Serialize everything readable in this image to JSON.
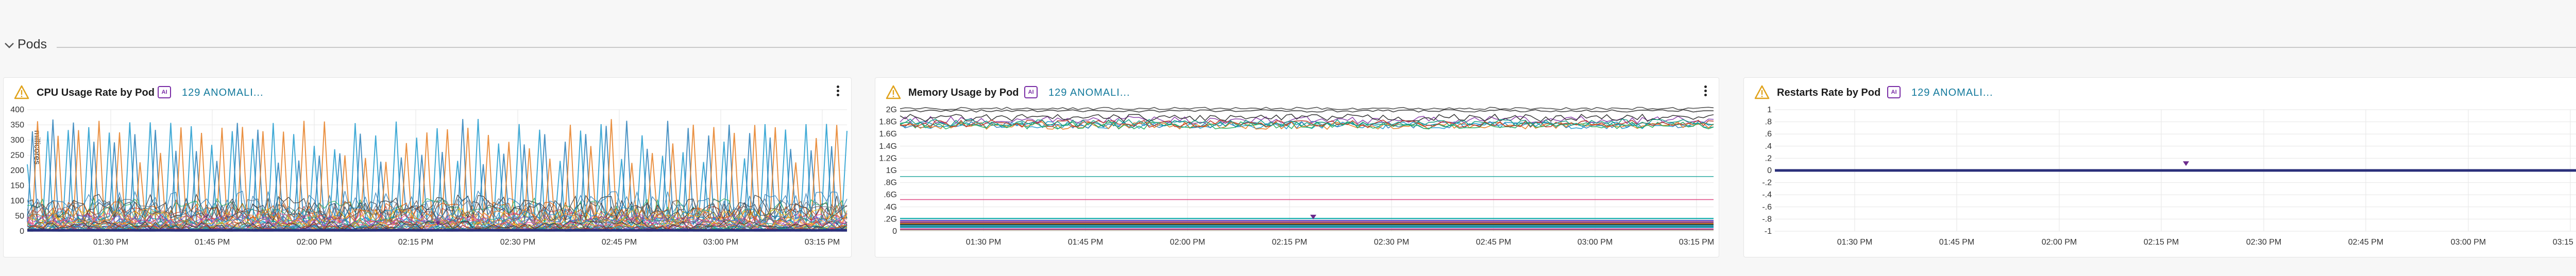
{
  "section": {
    "title": "Pods",
    "collapse_icon": "chevron-down-icon",
    "link_icon": "link-icon"
  },
  "panels": [
    {
      "title": "CPU Usage Rate by Pod",
      "badge": "AI",
      "anomaly_label": "129 ANOMALI...",
      "warning_icon": "warning-triangle-icon",
      "menu_icon": "kebab-menu-icon"
    },
    {
      "title": "Memory Usage by Pod",
      "badge": "AI",
      "anomaly_label": "129 ANOMALI...",
      "warning_icon": "warning-triangle-icon",
      "menu_icon": "kebab-menu-icon"
    },
    {
      "title": "Restarts Rate by Pod",
      "badge": "AI",
      "anomaly_label": "129 ANOMALI...",
      "warning_icon": "warning-triangle-icon",
      "menu_icon": "kebab-menu-icon"
    }
  ],
  "colors": {
    "warning": "#e0a21a",
    "ai_badge": "#7a2da6",
    "link": "#147a9c",
    "anomaly_marker": "#6b2a8c"
  },
  "chart_data": [
    {
      "type": "line",
      "ylabel_rotated": "millicores",
      "yticks": [
        "400",
        "350",
        "300",
        "250",
        "200",
        "150",
        "100",
        "50",
        "0"
      ],
      "ylim": [
        0,
        400
      ],
      "xticks": [
        "01:30 PM",
        "01:45 PM",
        "02:00 PM",
        "02:15 PM",
        "02:30 PM",
        "02:45 PM",
        "03:00 PM",
        "03:15 PM"
      ],
      "grid": true,
      "series_count": 40,
      "anomaly_markers": 1
    },
    {
      "type": "line",
      "yticks": [
        "2G",
        "1.8G",
        "1.6G",
        "1.4G",
        "1.2G",
        "1G",
        ".8G",
        ".6G",
        ".4G",
        ".2G",
        "0"
      ],
      "ylim": [
        0,
        2
      ],
      "xticks": [
        "01:30 PM",
        "01:45 PM",
        "02:00 PM",
        "02:15 PM",
        "02:30 PM",
        "02:45 PM",
        "03:00 PM",
        "03:15 PM"
      ],
      "grid": true,
      "series_count": 30,
      "anomaly_markers": 1
    },
    {
      "type": "line",
      "yticks": [
        "1",
        ".8",
        ".6",
        ".4",
        ".2",
        "0",
        "-.2",
        "-.4",
        "-.6",
        "-.8",
        "-1"
      ],
      "ylim": [
        -1,
        1
      ],
      "xticks": [
        "01:30 PM",
        "01:45 PM",
        "02:00 PM",
        "02:15 PM",
        "02:30 PM",
        "02:45 PM",
        "03:00 PM",
        "03:15 PM"
      ],
      "grid": true,
      "series": [
        {
          "values": [
            0
          ]
        }
      ],
      "anomaly_markers": 1
    }
  ]
}
